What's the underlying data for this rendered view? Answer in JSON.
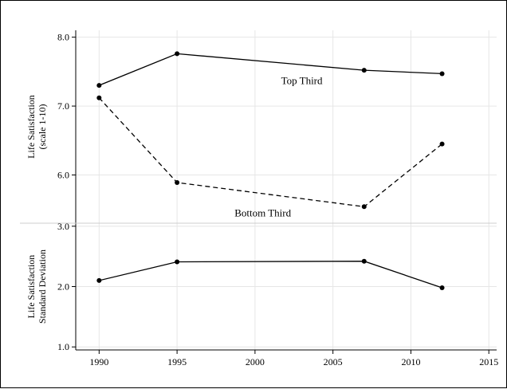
{
  "chart_data": [
    {
      "type": "line",
      "panel": "top",
      "ylabel_lines": [
        "Life Satisfaction",
        "(scale 1-10)"
      ],
      "ylim": [
        5.3,
        8.1
      ],
      "yticks": [
        6.0,
        7.0,
        8.0
      ],
      "ytick_labels": [
        "6.0",
        "7.0",
        "8.0"
      ],
      "x": [
        1990,
        1995,
        2007,
        2012
      ],
      "series": [
        {
          "name": "Top Third",
          "style": "solid",
          "values": [
            7.3,
            7.76,
            7.52,
            7.47
          ]
        },
        {
          "name": "Bottom Third",
          "style": "dashed",
          "values": [
            7.12,
            5.89,
            5.54,
            6.45
          ]
        }
      ],
      "annotations": [
        {
          "text": "Top Third",
          "x": 2003,
          "y": 7.32
        },
        {
          "text": "Bottom Third",
          "x": 2000.5,
          "y": 5.4
        }
      ],
      "grid": true
    },
    {
      "type": "line",
      "panel": "bottom",
      "ylabel_lines": [
        "Life Satisfaction",
        "Standard Deviation"
      ],
      "ylim": [
        0.95,
        3.05
      ],
      "yticks": [
        1.0,
        2.0,
        3.0
      ],
      "ytick_labels": [
        "1.0",
        "2.0",
        "3.0"
      ],
      "x": [
        1990,
        1995,
        2007,
        2012
      ],
      "series": [
        {
          "style": "solid",
          "values": [
            2.1,
            2.41,
            2.42,
            1.98
          ]
        }
      ],
      "grid": true
    }
  ],
  "x_axis": {
    "xlim": [
      1988.5,
      2015.5
    ],
    "ticks": [
      1990,
      1995,
      2000,
      2005,
      2010,
      2015
    ],
    "tick_labels": [
      "1990",
      "1995",
      "2000",
      "2005",
      "2010",
      "2015"
    ]
  },
  "colors": {
    "line": "#000000",
    "grid": "#e6e6e6",
    "axis": "#000000"
  }
}
